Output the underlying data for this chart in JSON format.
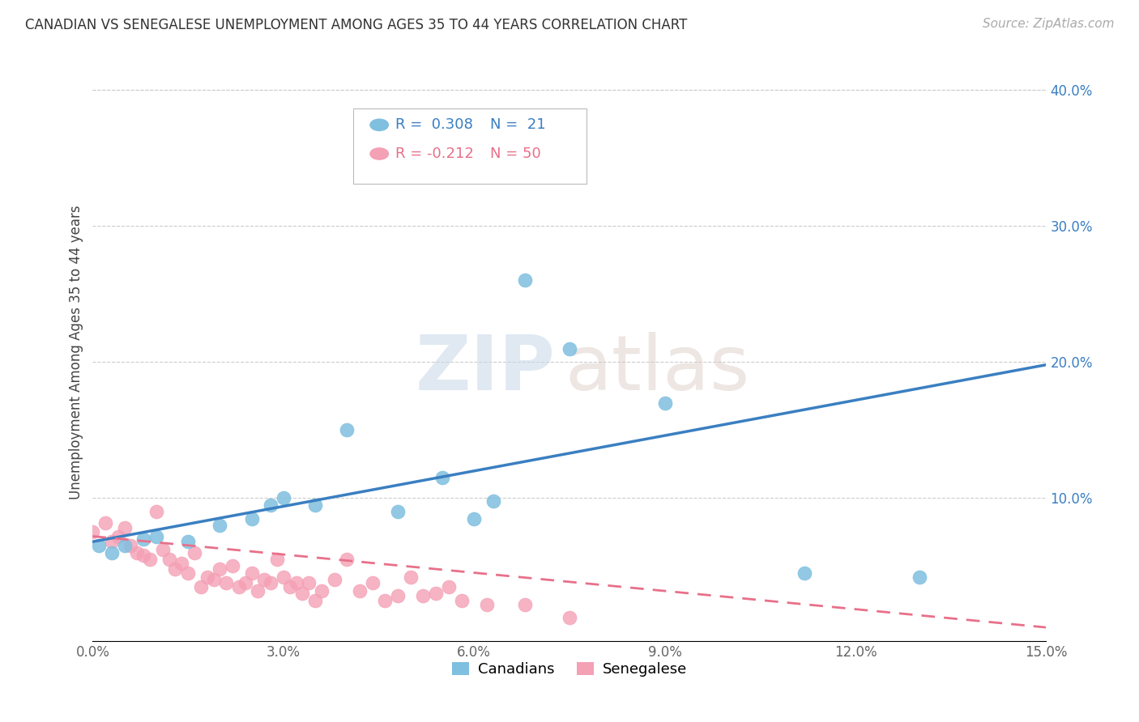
{
  "title": "CANADIAN VS SENEGALESE UNEMPLOYMENT AMONG AGES 35 TO 44 YEARS CORRELATION CHART",
  "source": "Source: ZipAtlas.com",
  "ylabel": "Unemployment Among Ages 35 to 44 years",
  "xlim": [
    0.0,
    0.15
  ],
  "ylim": [
    -0.005,
    0.42
  ],
  "xticks": [
    0.0,
    0.03,
    0.06,
    0.09,
    0.12,
    0.15
  ],
  "yticks_right": [
    0.1,
    0.2,
    0.3,
    0.4
  ],
  "canadian_color": "#7fbfdf",
  "senegalese_color": "#f4a0b5",
  "canadian_line_color": "#3a7fc1",
  "senegalese_line_color": "#e8708a",
  "R_canadian": 0.308,
  "N_canadian": 21,
  "R_senegalese": -0.212,
  "N_senegalese": 50,
  "watermark_zip": "ZIP",
  "watermark_atlas": "atlas",
  "background_color": "#ffffff",
  "canadian_line_x": [
    0.0,
    0.15
  ],
  "canadian_line_y": [
    0.068,
    0.198
  ],
  "senegalese_line_x": [
    0.0,
    0.15
  ],
  "senegalese_line_y": [
    0.072,
    0.005
  ],
  "canadians_x": [
    0.001,
    0.003,
    0.005,
    0.008,
    0.01,
    0.015,
    0.02,
    0.025,
    0.028,
    0.03,
    0.035,
    0.04,
    0.048,
    0.055,
    0.06,
    0.063,
    0.068,
    0.075,
    0.09,
    0.112,
    0.13
  ],
  "canadians_y": [
    0.065,
    0.06,
    0.065,
    0.07,
    0.072,
    0.068,
    0.08,
    0.085,
    0.095,
    0.1,
    0.095,
    0.15,
    0.09,
    0.115,
    0.085,
    0.098,
    0.26,
    0.21,
    0.17,
    0.045,
    0.042
  ],
  "senegalese_x": [
    0.0,
    0.002,
    0.003,
    0.004,
    0.005,
    0.006,
    0.007,
    0.008,
    0.009,
    0.01,
    0.011,
    0.012,
    0.013,
    0.014,
    0.015,
    0.016,
    0.017,
    0.018,
    0.019,
    0.02,
    0.021,
    0.022,
    0.023,
    0.024,
    0.025,
    0.026,
    0.027,
    0.028,
    0.029,
    0.03,
    0.031,
    0.032,
    0.033,
    0.034,
    0.035,
    0.036,
    0.038,
    0.04,
    0.042,
    0.044,
    0.046,
    0.048,
    0.05,
    0.052,
    0.054,
    0.056,
    0.058,
    0.062,
    0.068,
    0.075
  ],
  "senegalese_y": [
    0.075,
    0.082,
    0.068,
    0.072,
    0.078,
    0.065,
    0.06,
    0.058,
    0.055,
    0.09,
    0.062,
    0.055,
    0.048,
    0.052,
    0.045,
    0.06,
    0.035,
    0.042,
    0.04,
    0.048,
    0.038,
    0.05,
    0.035,
    0.038,
    0.045,
    0.032,
    0.04,
    0.038,
    0.055,
    0.042,
    0.035,
    0.038,
    0.03,
    0.038,
    0.025,
    0.032,
    0.04,
    0.055,
    0.032,
    0.038,
    0.025,
    0.028,
    0.042,
    0.028,
    0.03,
    0.035,
    0.025,
    0.022,
    0.022,
    0.012
  ]
}
